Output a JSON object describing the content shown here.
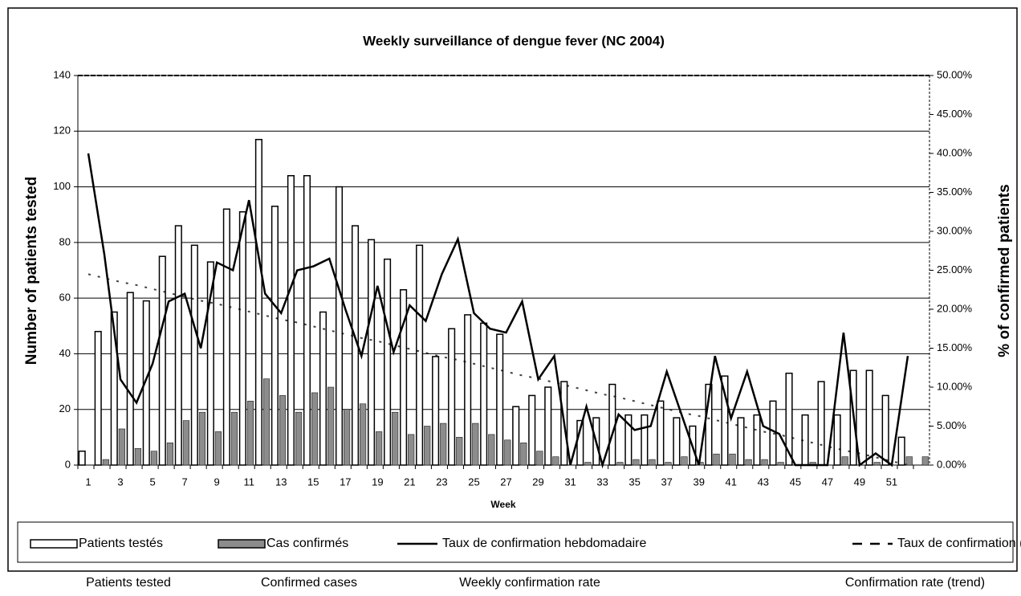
{
  "chart_data": {
    "type": "bar",
    "title": "Weekly surveillance of dengue fever (NC 2004)",
    "x_label": "Week",
    "y_label": "Number of patients tested",
    "y2_label": "% of confirmed patients",
    "categories": [
      "1",
      null,
      "3",
      null,
      "5",
      null,
      "7",
      null,
      "9",
      null,
      "11",
      null,
      "13",
      null,
      "15",
      null,
      "17",
      null,
      "19",
      null,
      "21",
      null,
      "23",
      null,
      "25",
      null,
      "27",
      null,
      "29",
      null,
      "31",
      null,
      "33",
      null,
      "35",
      null,
      "37",
      null,
      "39",
      null,
      "41",
      null,
      "43",
      null,
      "45",
      null,
      "47",
      null,
      "49",
      null,
      "51",
      null,
      null
    ],
    "ylim": [
      0,
      140
    ],
    "yticks": [
      0,
      20,
      40,
      60,
      80,
      100,
      120,
      140
    ],
    "y2lim": [
      0,
      50
    ],
    "y2ticks": [
      {
        "value": 0,
        "label": "0.00%"
      },
      {
        "value": 5,
        "label": "5.00%"
      },
      {
        "value": 10,
        "label": "10.00%"
      },
      {
        "value": 15,
        "label": "15.00%"
      },
      {
        "value": 20,
        "label": "20.00%"
      },
      {
        "value": 25,
        "label": "25.00%"
      },
      {
        "value": 30,
        "label": "30.00%"
      },
      {
        "value": 35,
        "label": "35.00%"
      },
      {
        "value": 40,
        "label": "40.00%"
      },
      {
        "value": 45,
        "label": "45.00%"
      },
      {
        "value": 50,
        "label": "50.00%"
      }
    ],
    "grid": true,
    "series": [
      {
        "name": "Patients testés",
        "type": "bar",
        "color": "#ffffff",
        "values": [
          5,
          48,
          55,
          62,
          59,
          75,
          86,
          79,
          73,
          92,
          91,
          117,
          93,
          104,
          104,
          55,
          100,
          86,
          81,
          74,
          63,
          79,
          39,
          49,
          54,
          51,
          47,
          21,
          25,
          28,
          30,
          16,
          17,
          29,
          18,
          18,
          23,
          17,
          14,
          29,
          32,
          17,
          18,
          23,
          33,
          18,
          30,
          18,
          34,
          34,
          25,
          10,
          0
        ]
      },
      {
        "name": "Cas confirmés",
        "type": "bar",
        "color": "#8c8c8c",
        "values": [
          0,
          2,
          13,
          6,
          5,
          8,
          16,
          19,
          12,
          19,
          23,
          31,
          25,
          19,
          26,
          28,
          20,
          22,
          12,
          19,
          11,
          14,
          15,
          10,
          15,
          11,
          9,
          8,
          5,
          3,
          0,
          1,
          0,
          1,
          2,
          2,
          1,
          3,
          1,
          4,
          4,
          2,
          2,
          1,
          0,
          1,
          0,
          3,
          0,
          1,
          0,
          3,
          3
        ]
      },
      {
        "name": "Taux de confirmation hebdomadaire",
        "type": "line",
        "axis": "y2",
        "color": "#000000",
        "values": [
          40,
          27,
          11,
          8,
          13,
          21,
          22,
          15,
          26,
          25,
          34,
          22,
          19.5,
          25,
          25.5,
          26.5,
          20,
          14,
          23,
          14.5,
          20.5,
          18.5,
          24.5,
          29,
          19.5,
          17.5,
          17,
          21,
          11,
          14,
          0,
          7.5,
          0,
          6.5,
          4.5,
          5,
          12,
          6,
          0,
          14,
          6,
          12,
          5,
          4,
          0,
          0,
          0,
          17,
          0,
          1.5,
          0,
          14,
          null
        ]
      },
      {
        "name": "Taux de  confirmation (tendance)",
        "type": "line",
        "style": "dashed",
        "axis": "y2",
        "color": "#000000",
        "values": [
          24.5,
          24.0,
          23.5,
          23.1,
          22.6,
          22.1,
          21.6,
          21.1,
          20.7,
          20.2,
          19.7,
          19.2,
          18.7,
          18.3,
          17.8,
          17.3,
          16.8,
          16.3,
          15.9,
          15.4,
          14.9,
          14.4,
          13.9,
          13.5,
          13.0,
          12.5,
          12.0,
          11.5,
          11.1,
          10.6,
          10.1,
          9.6,
          9.1,
          8.7,
          8.2,
          7.7,
          7.2,
          6.7,
          6.3,
          5.8,
          5.3,
          4.8,
          4.3,
          3.9,
          3.4,
          2.9,
          2.4,
          1.9,
          1.5,
          1.0,
          0.5,
          0.0,
          null
        ]
      }
    ],
    "annotations": [
      "Patients tested",
      "Confirmed cases",
      "Weekly confirmation rate",
      "Confirmation rate (trend)"
    ]
  }
}
